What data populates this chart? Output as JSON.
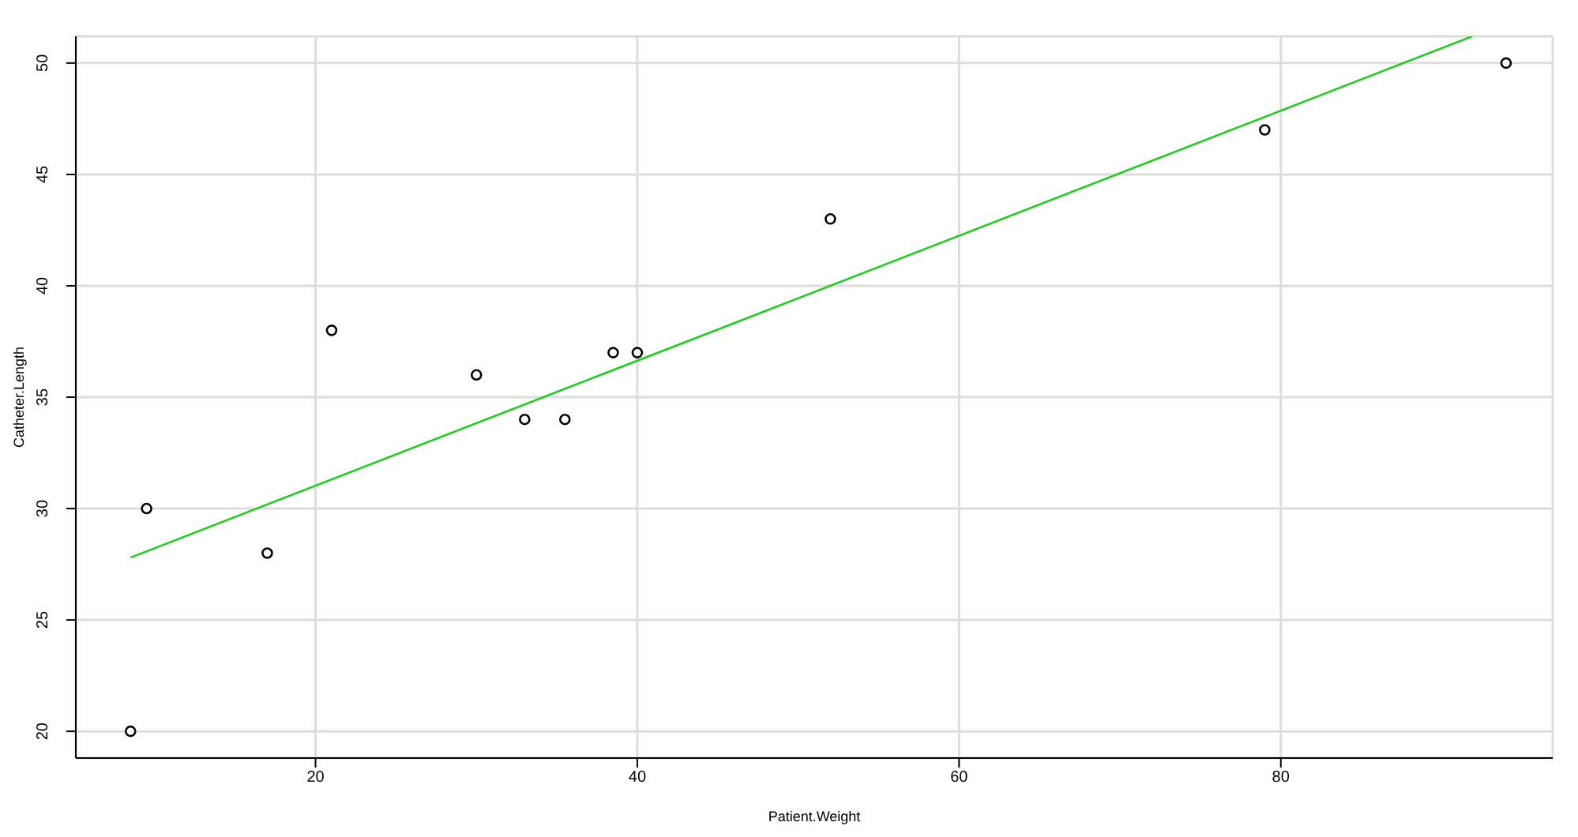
{
  "chart_data": {
    "type": "scatter",
    "xlabel": "Patient.Weight",
    "ylabel": "Catheter.Length",
    "xlim": [
      5.1,
      96.9
    ],
    "ylim": [
      18.8,
      51.2
    ],
    "xticks": [
      20,
      40,
      60,
      80
    ],
    "yticks": [
      20,
      25,
      30,
      35,
      40,
      45,
      50
    ],
    "grid": true,
    "marker": "circle",
    "series": [
      {
        "color": "#000000",
        "x": [
          8.5,
          9.5,
          17,
          21,
          30,
          33,
          35.5,
          38.5,
          40,
          52,
          79,
          94
        ],
        "values": [
          20,
          30,
          28,
          38,
          36,
          34,
          34,
          37,
          37,
          43,
          47,
          50
        ]
      },
      {
        "type": "line",
        "color": "#22cc22",
        "marker": "none",
        "line_style": "solid",
        "x": [
          8.5,
          91.9
        ],
        "values": [
          27.8,
          51.2
        ]
      }
    ]
  }
}
